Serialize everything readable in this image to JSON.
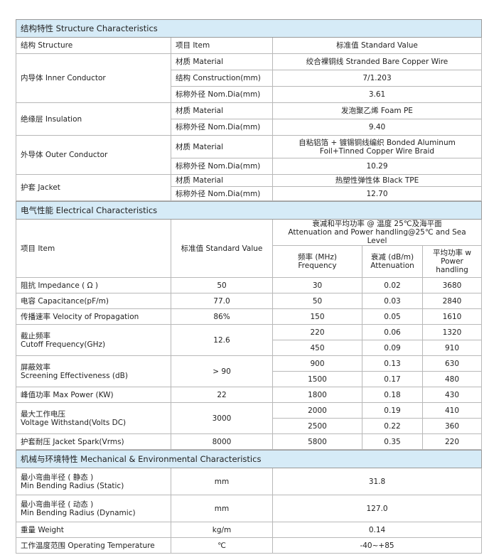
{
  "structure": {
    "title": "结构特性 Structure Characteristics",
    "headers": [
      "结构 Structure",
      "项目 Item",
      "标准值 Standard Value"
    ],
    "groups": [
      {
        "name": "内导体 Inner Conductor",
        "rows": [
          [
            "材质 Material",
            "绞合裸铜线 Stranded Bare Copper Wire"
          ],
          [
            "结构 Construction(mm)",
            "7/1.203"
          ],
          [
            "标称外径 Nom.Dia(mm)",
            "3.61"
          ]
        ]
      },
      {
        "name": "绝缘层 Insulation",
        "rows": [
          [
            "材质 Material",
            "发泡聚乙烯 Foam PE"
          ],
          [
            "标称外径 Nom.Dia(mm)",
            "9.40"
          ]
        ]
      },
      {
        "name": "外导体 Outer Conductor",
        "rows": [
          [
            "材质 Material",
            "自粘铝箔 + 镀锡铜线编织 Bonded Aluminum Foil+Tinned Copper Wire Braid"
          ],
          [
            "标称外径 Nom.Dia(mm)",
            "10.29"
          ]
        ]
      },
      {
        "name": "护套 Jacket",
        "rows": [
          [
            "材质 Material",
            "热塑性弹性体 Black TPE"
          ],
          [
            "标称外径 Nom.Dia(mm)",
            "12.70"
          ]
        ]
      }
    ]
  },
  "electrical": {
    "title": "电气性能 Electrical Characteristics",
    "header_item": "项目 Item",
    "header_value": "标准值 Standard Value",
    "header_atten_cn": "衰减和平均功率 @ 温度 25℃及海平面",
    "header_atten_en": "Attenuation and Power handling@25℃ and Sea Level",
    "header_freq": [
      "频率 (MHz)",
      "Frequency"
    ],
    "header_att": [
      "衰减 (dB/m)",
      "Attenuation"
    ],
    "header_pow": [
      "平均功率 w",
      "Power",
      "handling"
    ],
    "params": [
      {
        "cn": "阻抗 Impedance ( Ω )",
        "en": "",
        "value": "50",
        "span": 1
      },
      {
        "cn": "电容 Capacitance(pF/m)",
        "en": "",
        "value": "77.0",
        "span": 1
      },
      {
        "cn": "传播速率 Velocity of Propagation",
        "en": "",
        "value": "86%",
        "span": 1
      },
      {
        "cn": "截止频率",
        "en": "Cutoff Frequency(GHz)",
        "value": "12.6",
        "span": 2
      },
      {
        "cn": "屏蔽效率",
        "en": "Screening Effectiveness (dB)",
        "value": "> 90",
        "span": 2
      },
      {
        "cn": "峰值功率 Max Power (KW)",
        "en": "",
        "value": "22",
        "span": 1
      },
      {
        "cn": "最大工作电压",
        "en": "Voltage Withstand(Volts DC)",
        "value": "3000",
        "span": 2
      },
      {
        "cn": "护套耐压 Jacket Spark(Vrms)",
        "en": "",
        "value": "8000",
        "span": 1
      }
    ],
    "attenuation": [
      [
        "30",
        "0.02",
        "3680"
      ],
      [
        "50",
        "0.03",
        "2840"
      ],
      [
        "150",
        "0.05",
        "1610"
      ],
      [
        "220",
        "0.06",
        "1320"
      ],
      [
        "450",
        "0.09",
        "910"
      ],
      [
        "900",
        "0.13",
        "630"
      ],
      [
        "1500",
        "0.17",
        "480"
      ],
      [
        "1800",
        "0.18",
        "430"
      ],
      [
        "2000",
        "0.19",
        "410"
      ],
      [
        "2500",
        "0.22",
        "360"
      ],
      [
        "5800",
        "0.35",
        "220"
      ]
    ]
  },
  "mechanical": {
    "title": "机械与环境特性  Mechanical & Environmental Characteristics",
    "rows": [
      {
        "cn": "最小弯曲半径 ( 静态 )",
        "en": "Min Bending Radius (Static)",
        "unit": "mm",
        "value": "31.8"
      },
      {
        "cn": "最小弯曲半径 ( 动态 )",
        "en": "Min Bending Radius (Dynamic)",
        "unit": "mm",
        "value": "127.0"
      },
      {
        "cn": "重量 Weight",
        "en": "",
        "unit": "kg/m",
        "value": "0.14"
      },
      {
        "cn": "工作温度范围 Operating Temperature",
        "en": "",
        "unit": "℃",
        "value": "-40~+85"
      }
    ]
  },
  "colors": {
    "section_header": "#d6ebf7",
    "border": "#b8b8b8"
  }
}
